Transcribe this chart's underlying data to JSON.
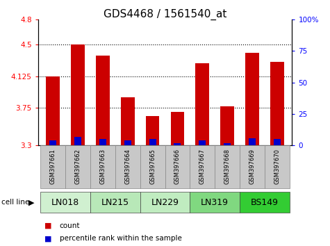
{
  "title": "GDS4468 / 1561540_at",
  "samples": [
    "GSM397661",
    "GSM397662",
    "GSM397663",
    "GSM397664",
    "GSM397665",
    "GSM397666",
    "GSM397667",
    "GSM397668",
    "GSM397669",
    "GSM397670"
  ],
  "count_values": [
    4.125,
    4.5,
    4.37,
    3.87,
    3.65,
    3.7,
    4.28,
    3.76,
    4.4,
    4.3
  ],
  "percentile_values": [
    3.36,
    3.4,
    3.37,
    3.36,
    3.37,
    3.32,
    3.36,
    3.32,
    3.38,
    3.37
  ],
  "cell_lines": [
    {
      "name": "LN018",
      "start": 0,
      "end": 2,
      "color": "#d0f0d0"
    },
    {
      "name": "LN215",
      "start": 2,
      "end": 4,
      "color": "#b8e8b8"
    },
    {
      "name": "LN229",
      "start": 4,
      "end": 6,
      "color": "#c0ecc0"
    },
    {
      "name": "LN319",
      "start": 6,
      "end": 8,
      "color": "#80d880"
    },
    {
      "name": "BS149",
      "start": 8,
      "end": 10,
      "color": "#33cc33"
    }
  ],
  "y_min": 3.3,
  "y_max": 4.8,
  "y_ticks_left": [
    3.3,
    3.75,
    4.125,
    4.5,
    4.8
  ],
  "y_ticks_left_labels": [
    "3.3",
    "3.75",
    "4.125",
    "4.5",
    "4.8"
  ],
  "y_ticks_right_vals": [
    0,
    25,
    50,
    75,
    100
  ],
  "y_ticks_right_labels": [
    "0",
    "25",
    "50",
    "75",
    "100%"
  ],
  "bar_color": "#cc0000",
  "percentile_color": "#0000cc",
  "background_color": "#ffffff",
  "sample_box_color": "#c8c8c8",
  "sample_box_edge": "#888888",
  "bar_width": 0.55,
  "title_fontsize": 11
}
